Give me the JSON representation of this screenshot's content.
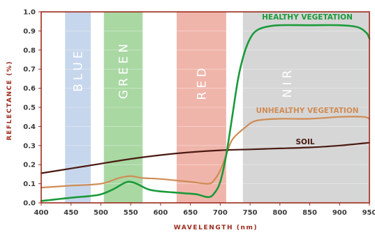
{
  "chart_data": {
    "type": "line",
    "title": "",
    "xlabel": "WAVELENGTH (nm)",
    "ylabel": "REFLECTANCE (%)",
    "xlim": [
      400,
      950
    ],
    "ylim": [
      0,
      1.0
    ],
    "x_ticks": [
      "400",
      "450",
      "500",
      "550",
      "600",
      "650",
      "700",
      "750",
      "800",
      "850",
      "900",
      "950"
    ],
    "y_ticks": [
      "0.0",
      "0.1",
      "0.2",
      "0.3",
      "0.4",
      "0.5",
      "0.6",
      "0.7",
      "0.8",
      "0.9",
      "1.0"
    ],
    "grid": true,
    "bands": [
      {
        "name": "BLUE",
        "start": 440,
        "end": 483,
        "color": "#c6d6ec"
      },
      {
        "name": "GREEN",
        "start": 505,
        "end": 570,
        "color": "#a9d8a3"
      },
      {
        "name": "RED",
        "start": 627,
        "end": 710,
        "color": "#f0b5aa"
      },
      {
        "name": "NIR",
        "start": 738,
        "end": 950,
        "color": "#d6d6d6"
      }
    ],
    "series": [
      {
        "name": "HEALTHY VEGETATION",
        "color": "#1a9a3a",
        "x": [
          400,
          430,
          460,
          480,
          500,
          520,
          540,
          550,
          560,
          580,
          600,
          620,
          640,
          660,
          680,
          690,
          700,
          710,
          720,
          730,
          740,
          750,
          760,
          775,
          800,
          850,
          900,
          930,
          945,
          950
        ],
        "y": [
          0.01,
          0.02,
          0.03,
          0.035,
          0.045,
          0.07,
          0.105,
          0.11,
          0.1,
          0.07,
          0.06,
          0.055,
          0.05,
          0.045,
          0.03,
          0.05,
          0.11,
          0.25,
          0.45,
          0.65,
          0.78,
          0.86,
          0.9,
          0.92,
          0.93,
          0.93,
          0.93,
          0.92,
          0.89,
          0.86
        ]
      },
      {
        "name": "UNHEALTHY VEGETATION",
        "color": "#d08c55",
        "x": [
          400,
          450,
          500,
          530,
          550,
          570,
          600,
          650,
          680,
          690,
          700,
          710,
          720,
          740,
          760,
          800,
          850,
          900,
          940,
          950
        ],
        "y": [
          0.08,
          0.09,
          0.1,
          0.13,
          0.14,
          0.13,
          0.125,
          0.11,
          0.1,
          0.12,
          0.17,
          0.25,
          0.33,
          0.39,
          0.43,
          0.44,
          0.44,
          0.45,
          0.45,
          0.44
        ]
      },
      {
        "name": "SOIL",
        "color": "#4a1a12",
        "x": [
          400,
          450,
          500,
          550,
          600,
          650,
          700,
          750,
          800,
          850,
          900,
          950
        ],
        "y": [
          0.155,
          0.18,
          0.205,
          0.23,
          0.25,
          0.265,
          0.275,
          0.28,
          0.285,
          0.29,
          0.3,
          0.315
        ]
      }
    ]
  }
}
